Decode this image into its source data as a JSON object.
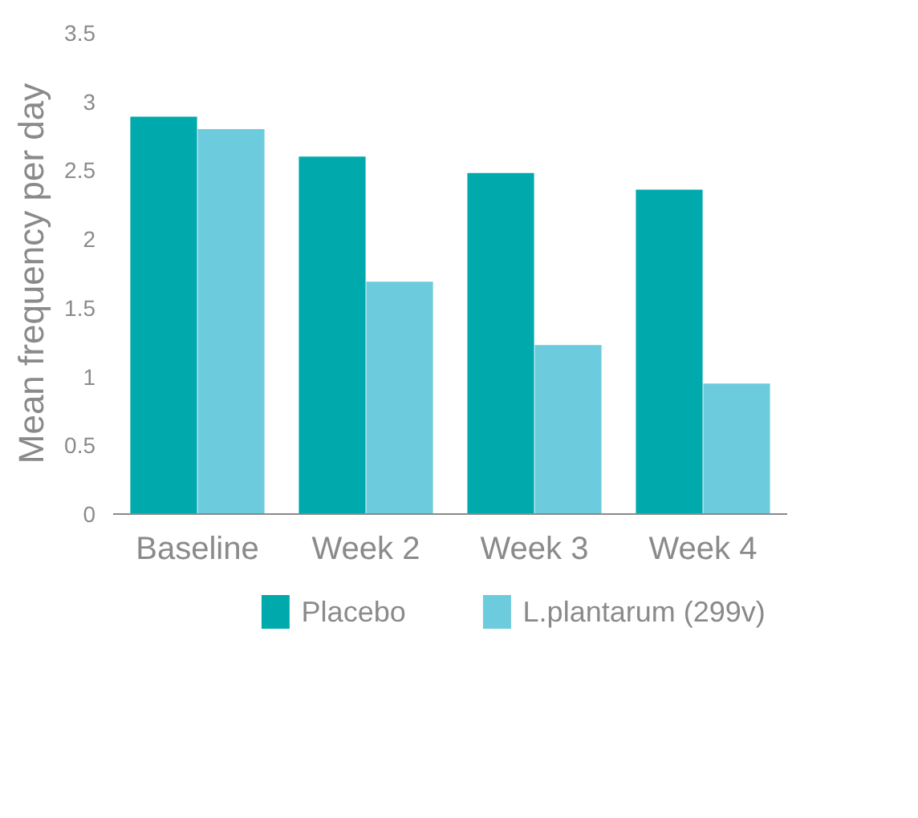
{
  "chart_data": {
    "type": "bar",
    "ylabel": "Mean frequency per day",
    "categories": [
      "Baseline",
      "Week 2",
      "Week 3",
      "Week 4"
    ],
    "series": [
      {
        "name": "Placebo",
        "color": "#00a9ac",
        "values": [
          2.89,
          2.6,
          2.48,
          2.36
        ]
      },
      {
        "name": "L.plantarum (299v)",
        "color": "#6ccbdc",
        "values": [
          2.8,
          1.69,
          1.23,
          0.95
        ]
      }
    ],
    "ylim": [
      0,
      3.5
    ],
    "yticks": [
      0,
      0.5,
      1,
      1.5,
      2,
      2.5,
      3,
      3.5
    ],
    "grid": false,
    "legend": "bottom"
  }
}
